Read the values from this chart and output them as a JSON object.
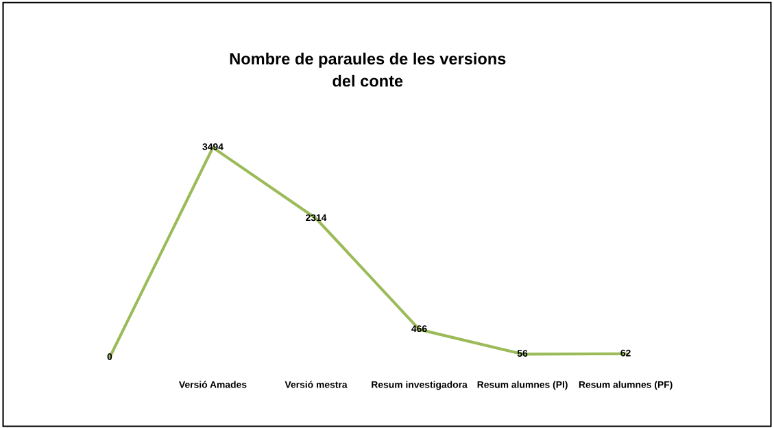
{
  "chart_data": {
    "type": "line",
    "title": "Nombre de paraules de les versions\ndel conte",
    "categories": [
      null,
      "Versió Amades",
      "Versió mestra",
      "Resum investigadora",
      "Resum alumnes (PI)",
      "Resum alumnes (PF)"
    ],
    "series": [
      {
        "color": "#9bbb59",
        "values": [
          0,
          3494,
          2314,
          466,
          56,
          62
        ]
      }
    ],
    "data_labels": true,
    "tick_labels": "x",
    "grid": false,
    "legend": false,
    "marker": "none"
  }
}
